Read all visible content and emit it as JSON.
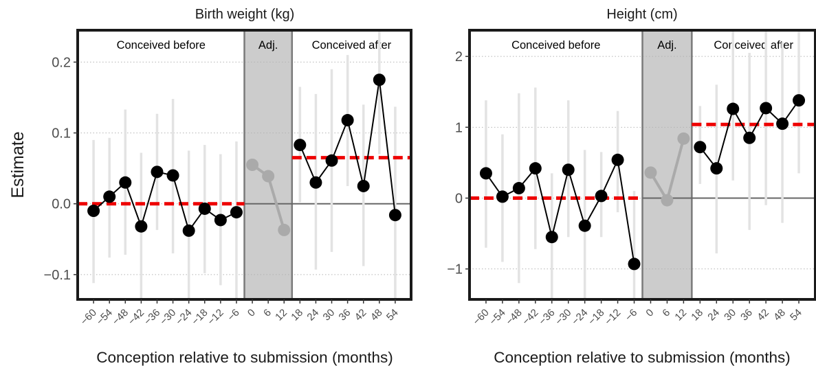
{
  "y_axis_label": "Estimate",
  "chart_data": [
    {
      "type": "line",
      "title": "Birth weight (kg)",
      "xlabel": "Conception relative to submission (months)",
      "ylabel": "Estimate",
      "x": [
        -60,
        -54,
        -48,
        -42,
        -36,
        -30,
        -24,
        -18,
        -12,
        -6,
        0,
        6,
        12,
        18,
        24,
        30,
        36,
        42,
        48,
        54
      ],
      "xlim": [
        -66,
        60
      ],
      "ylim": [
        -0.135,
        0.245
      ],
      "yticks": [
        -0.1,
        0.0,
        0.1,
        0.2
      ],
      "ytick_labels": [
        "−0.1",
        "0.0",
        "0.1",
        "0.2"
      ],
      "xtick_labels": [
        "−60",
        "−54",
        "−48",
        "−42",
        "−36",
        "−30",
        "−24",
        "−18",
        "−12",
        "−6",
        "0",
        "6",
        "12",
        "18",
        "24",
        "30",
        "36",
        "42",
        "48",
        "54"
      ],
      "grid": true,
      "regions": [
        {
          "label": "Conceived before",
          "from": -66,
          "to": -3,
          "shaded": false
        },
        {
          "label": "Adj.",
          "from": -3,
          "to": 15,
          "shaded": true
        },
        {
          "label": "Conceived after",
          "from": 15,
          "to": 60,
          "shaded": false
        }
      ],
      "series": [
        {
          "segment": "before",
          "color": "#000000",
          "x": [
            -60,
            -54,
            -48,
            -42,
            -36,
            -30,
            -24,
            -18,
            -12,
            -6
          ],
          "y": [
            -0.01,
            0.01,
            0.03,
            -0.032,
            0.045,
            0.04,
            -0.038,
            -0.007,
            -0.023,
            -0.012
          ],
          "ci_low": [
            -0.112,
            -0.076,
            -0.072,
            -0.135,
            -0.037,
            -0.07,
            -0.135,
            -0.098,
            -0.115,
            -0.135
          ],
          "ci_high": [
            0.09,
            0.093,
            0.133,
            0.072,
            0.127,
            0.148,
            0.075,
            0.083,
            0.07,
            0.088
          ]
        },
        {
          "segment": "adjustment",
          "color": "#aaaaaa",
          "x": [
            0,
            6,
            12
          ],
          "y": [
            0.055,
            0.039,
            -0.037
          ],
          "ci_low": [],
          "ci_high": []
        },
        {
          "segment": "after",
          "color": "#000000",
          "x": [
            18,
            24,
            30,
            36,
            42,
            48,
            54
          ],
          "y": [
            0.083,
            0.03,
            0.061,
            0.118,
            0.025,
            0.175,
            -0.016
          ],
          "ci_low": [
            0.002,
            -0.093,
            -0.068,
            0.025,
            -0.088,
            0.07,
            -0.135
          ],
          "ci_high": [
            0.165,
            0.155,
            0.19,
            0.21,
            0.14,
            0.28,
            0.137
          ]
        }
      ],
      "reference_lines": [
        {
          "from": -66,
          "to": -3,
          "y": 0.0,
          "color": "#ee0000"
        },
        {
          "from": 15,
          "to": 60,
          "y": 0.065,
          "color": "#ee0000"
        }
      ]
    },
    {
      "type": "line",
      "title": "Height (cm)",
      "xlabel": "Conception relative to submission (months)",
      "ylabel": "Estimate",
      "x": [
        -60,
        -54,
        -48,
        -42,
        -36,
        -30,
        -24,
        -18,
        -12,
        -6,
        0,
        6,
        12,
        18,
        24,
        30,
        36,
        42,
        48,
        54
      ],
      "xlim": [
        -66,
        60
      ],
      "ylim": [
        -1.43,
        2.37
      ],
      "yticks": [
        -1,
        0,
        1,
        2
      ],
      "ytick_labels": [
        "−1",
        "0",
        "1",
        "2"
      ],
      "xtick_labels": [
        "−60",
        "−54",
        "−48",
        "−42",
        "−36",
        "−30",
        "−24",
        "−18",
        "−12",
        "−6",
        "0",
        "6",
        "12",
        "18",
        "24",
        "30",
        "36",
        "42",
        "48",
        "54"
      ],
      "grid": true,
      "regions": [
        {
          "label": "Conceived before",
          "from": -66,
          "to": -3,
          "shaded": false
        },
        {
          "label": "Adj.",
          "from": -3,
          "to": 15,
          "shaded": true
        },
        {
          "label": "Conceived after",
          "from": 15,
          "to": 60,
          "shaded": false
        }
      ],
      "series": [
        {
          "segment": "before",
          "color": "#000000",
          "x": [
            -60,
            -54,
            -48,
            -42,
            -36,
            -30,
            -24,
            -18,
            -12,
            -6
          ],
          "y": [
            0.35,
            0.02,
            0.14,
            0.42,
            -0.55,
            0.4,
            -0.39,
            0.03,
            0.54,
            -0.93
          ],
          "ci_low": [
            -0.7,
            -0.9,
            -1.2,
            -0.72,
            -1.43,
            -0.55,
            -1.43,
            -0.55,
            -0.2,
            -1.43
          ],
          "ci_high": [
            1.38,
            0.9,
            1.48,
            1.56,
            0.35,
            1.38,
            0.68,
            0.65,
            1.23,
            0.1
          ]
        },
        {
          "segment": "adjustment",
          "color": "#aaaaaa",
          "x": [
            0,
            6,
            12
          ],
          "y": [
            0.36,
            -0.03,
            0.84
          ],
          "ci_low": [],
          "ci_high": []
        },
        {
          "segment": "after",
          "color": "#000000",
          "x": [
            18,
            24,
            30,
            36,
            42,
            48,
            54
          ],
          "y": [
            0.72,
            0.42,
            1.26,
            0.85,
            1.27,
            1.05,
            1.38
          ],
          "ci_low": [
            0.2,
            -0.78,
            0.25,
            -0.45,
            -0.1,
            -0.35,
            0.35
          ],
          "ci_high": [
            1.3,
            1.6,
            2.37,
            2.05,
            2.37,
            2.2,
            2.37
          ]
        }
      ],
      "reference_lines": [
        {
          "from": -66,
          "to": -3,
          "y": 0.0,
          "color": "#ee0000"
        },
        {
          "from": 15,
          "to": 60,
          "y": 1.04,
          "color": "#ee0000"
        }
      ]
    }
  ]
}
